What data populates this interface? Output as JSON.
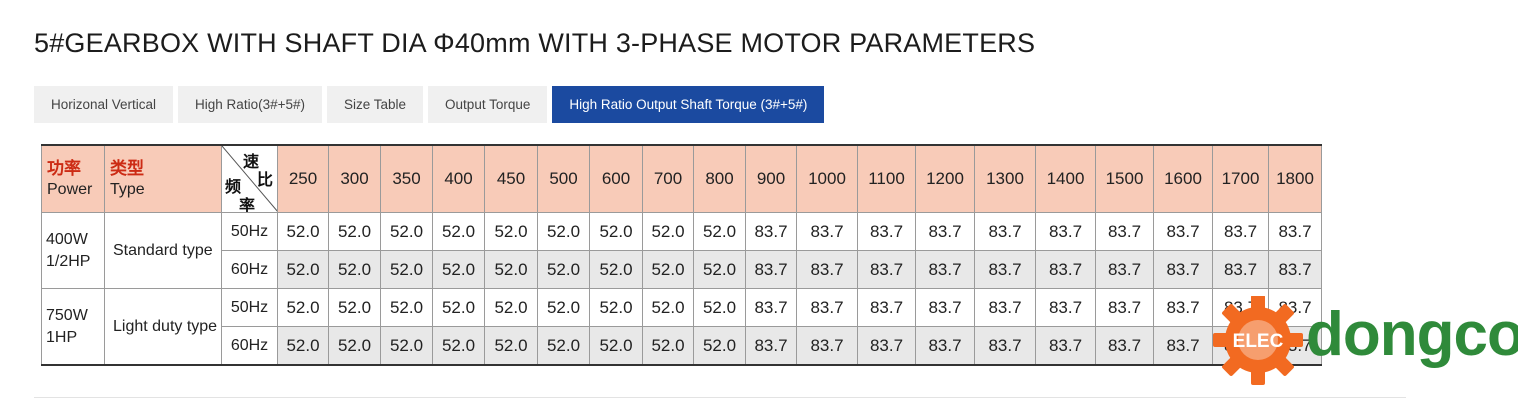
{
  "page": {
    "title": "5#GEARBOX WITH SHAFT DIA Φ40mm WITH 3-PHASE MOTOR PARAMETERS"
  },
  "tabs": [
    {
      "label": "Horizonal Vertical",
      "active": false
    },
    {
      "label": "High Ratio(3#+5#)",
      "active": false
    },
    {
      "label": "Size Table",
      "active": false
    },
    {
      "label": "Output Torque",
      "active": false
    },
    {
      "label": "High Ratio Output Shaft Torque (3#+5#)",
      "active": true
    }
  ],
  "table": {
    "header": {
      "power_cn": "功率",
      "power_en": "Power",
      "type_cn": "类型",
      "type_en": "Type",
      "diag_top_1": "速",
      "diag_top_2": "比",
      "diag_bottom_1": "频",
      "diag_bottom_2": "率"
    },
    "ratios": [
      "250",
      "300",
      "350",
      "400",
      "450",
      "500",
      "600",
      "700",
      "800",
      "900",
      "1000",
      "1100",
      "1200",
      "1300",
      "1400",
      "1500",
      "1600",
      "1700",
      "1800"
    ],
    "groups": [
      {
        "power_1": "400W",
        "power_2": "1/2HP",
        "type": "Standard type",
        "rows": [
          {
            "freq": "50Hz",
            "values": [
              "52.0",
              "52.0",
              "52.0",
              "52.0",
              "52.0",
              "52.0",
              "52.0",
              "52.0",
              "52.0",
              "83.7",
              "83.7",
              "83.7",
              "83.7",
              "83.7",
              "83.7",
              "83.7",
              "83.7",
              "83.7",
              "83.7"
            ]
          },
          {
            "freq": "60Hz",
            "values": [
              "52.0",
              "52.0",
              "52.0",
              "52.0",
              "52.0",
              "52.0",
              "52.0",
              "52.0",
              "52.0",
              "83.7",
              "83.7",
              "83.7",
              "83.7",
              "83.7",
              "83.7",
              "83.7",
              "83.7",
              "83.7",
              "83.7"
            ]
          }
        ]
      },
      {
        "power_1": "750W",
        "power_2": "1HP",
        "type": "Light duty type",
        "rows": [
          {
            "freq": "50Hz",
            "values": [
              "52.0",
              "52.0",
              "52.0",
              "52.0",
              "52.0",
              "52.0",
              "52.0",
              "52.0",
              "52.0",
              "83.7",
              "83.7",
              "83.7",
              "83.7",
              "83.7",
              "83.7",
              "83.7",
              "83.7",
              "83.7",
              "83.7"
            ]
          },
          {
            "freq": "60Hz",
            "values": [
              "52.0",
              "52.0",
              "52.0",
              "52.0",
              "52.0",
              "52.0",
              "52.0",
              "52.0",
              "52.0",
              "83.7",
              "83.7",
              "83.7",
              "83.7",
              "83.7",
              "83.7",
              "83.7",
              "83.7",
              "83.7",
              "83.7"
            ]
          }
        ]
      }
    ]
  },
  "watermark": {
    "text": "dongco",
    "badge": "ELEC",
    "gear_color": "#f26a21",
    "text_color": "#2f8a3a"
  },
  "colors": {
    "header_bg": "#f8cbb8",
    "header_cn_text": "#cc2b14",
    "active_tab": "#1b4aa0",
    "row_60_bg": "#e8e8e8"
  }
}
